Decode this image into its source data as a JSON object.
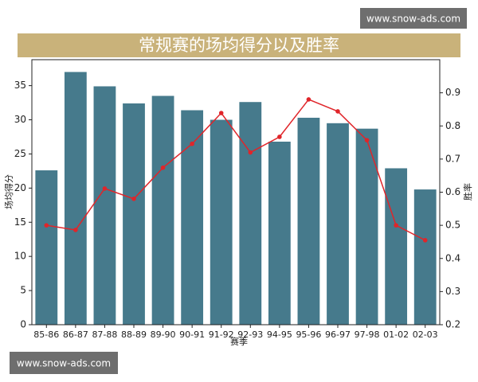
{
  "chart_data": {
    "type": "bar-line",
    "title": "常规赛的场均得分以及胜率",
    "watermarks": [
      "www.snow-ads.com",
      "www.snow-ads.com"
    ],
    "xlabel": "赛季",
    "ylabel": "场均得分",
    "y2label": "胜率",
    "categories": [
      "85-86",
      "86-87",
      "87-88",
      "88-89",
      "89-90",
      "90-91",
      "91-92",
      "92-93",
      "94-95",
      "95-96",
      "96-97",
      "97-98",
      "01-02",
      "02-03"
    ],
    "series": [
      {
        "name": "场均得分",
        "type": "bar",
        "color": "#467a8c",
        "values": [
          22.6,
          37.0,
          34.9,
          32.4,
          33.5,
          31.4,
          30.0,
          32.6,
          26.8,
          30.3,
          29.5,
          28.7,
          22.9,
          19.8
        ]
      },
      {
        "name": "胜率",
        "type": "line",
        "axis": "y2",
        "color": "#e0252a",
        "values": [
          0.5,
          0.486,
          0.611,
          0.58,
          0.674,
          0.746,
          0.839,
          0.72,
          0.767,
          0.88,
          0.844,
          0.757,
          0.5,
          0.455
        ]
      }
    ],
    "ylim": [
      0,
      38.8
    ],
    "yticks": [
      0,
      5,
      10,
      15,
      20,
      25,
      30,
      35
    ],
    "y2lim": [
      0.2,
      1.0
    ],
    "y2ticks": [
      0.2,
      0.3,
      0.4,
      0.5,
      0.6,
      0.7,
      0.8,
      0.9
    ],
    "grid": false
  }
}
